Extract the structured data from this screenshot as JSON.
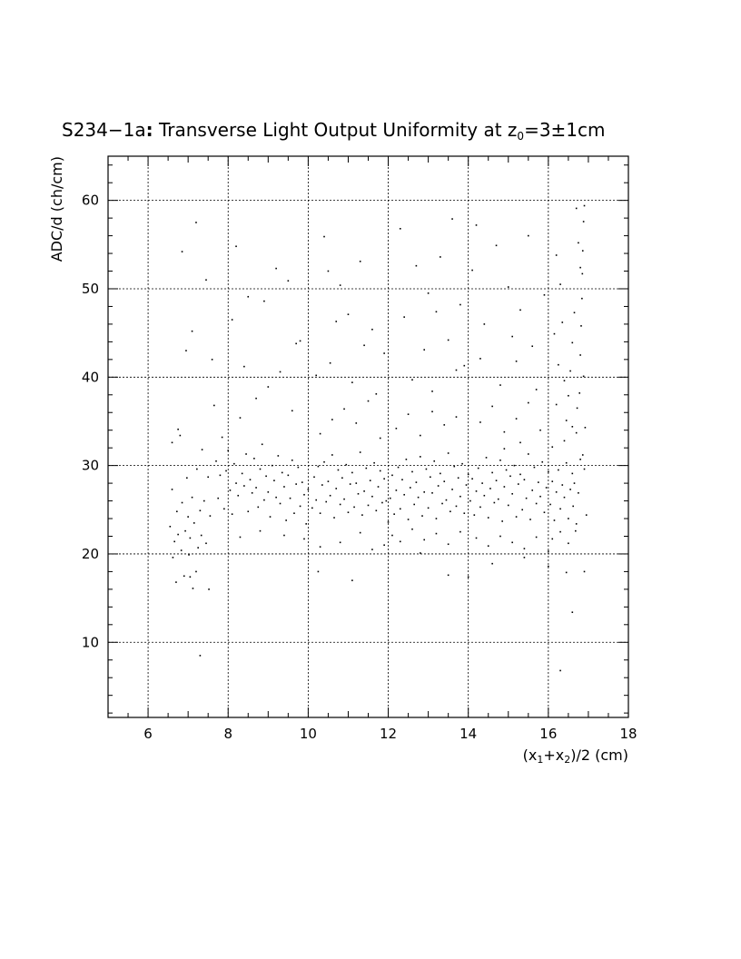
{
  "chart_data": {
    "type": "scatter",
    "title": {
      "prefix": "S234−1a",
      "colon": ":",
      "main": " Transverse Light Output Uniformity at z",
      "sub": "0",
      "suffix": "=3±1cm"
    },
    "xlabel": {
      "p1": "(x",
      "sub1": "1",
      "p2": "+x",
      "sub2": "2",
      "p3": ")/2 (cm)"
    },
    "ylabel": "ADC/d (ch/cm)",
    "xlim": [
      5,
      18
    ],
    "ylim": [
      1.5,
      65
    ],
    "xticks": [
      6,
      8,
      10,
      12,
      14,
      16,
      18
    ],
    "xtick_labels": [
      "6",
      "8",
      "10",
      "12",
      "14",
      "16",
      "18"
    ],
    "yticks": [
      10,
      20,
      30,
      40,
      50,
      60
    ],
    "ytick_labels": [
      "10",
      "20",
      "30",
      "40",
      "50",
      "60"
    ],
    "grid": true,
    "points": [
      [
        6.55,
        23.1
      ],
      [
        6.6,
        27.3
      ],
      [
        6.62,
        19.6
      ],
      [
        6.66,
        21.4
      ],
      [
        6.7,
        16.8
      ],
      [
        6.72,
        24.8
      ],
      [
        6.75,
        22.2
      ],
      [
        6.8,
        33.4
      ],
      [
        6.83,
        20.4
      ],
      [
        6.85,
        25.8
      ],
      [
        6.9,
        17.5
      ],
      [
        6.93,
        22.6
      ],
      [
        6.97,
        28.6
      ],
      [
        7.0,
        24.2
      ],
      [
        7.02,
        19.9
      ],
      [
        7.05,
        21.8
      ],
      [
        7.1,
        26.4
      ],
      [
        7.12,
        16.1
      ],
      [
        7.15,
        23.5
      ],
      [
        7.2,
        18.0
      ],
      [
        7.22,
        29.6
      ],
      [
        7.25,
        20.7
      ],
      [
        7.3,
        24.9
      ],
      [
        7.33,
        22.1
      ],
      [
        7.35,
        31.8
      ],
      [
        7.4,
        26.0
      ],
      [
        7.45,
        21.2
      ],
      [
        7.5,
        28.7
      ],
      [
        7.52,
        16.0
      ],
      [
        7.55,
        24.3
      ],
      [
        6.6,
        32.6
      ],
      [
        6.85,
        54.2
      ],
      [
        6.95,
        43.0
      ],
      [
        7.1,
        45.2
      ],
      [
        7.2,
        57.5
      ],
      [
        7.45,
        51.0
      ],
      [
        7.6,
        42.0
      ],
      [
        7.3,
        8.5
      ],
      [
        7.05,
        17.4
      ],
      [
        6.75,
        34.1
      ],
      [
        7.65,
        36.8
      ],
      [
        7.7,
        30.5
      ],
      [
        7.75,
        26.3
      ],
      [
        7.8,
        28.9
      ],
      [
        7.85,
        33.2
      ],
      [
        7.9,
        25.1
      ],
      [
        7.95,
        29.4
      ],
      [
        8.0,
        31.7
      ],
      [
        8.05,
        27.2
      ],
      [
        8.1,
        24.5
      ],
      [
        8.15,
        30.2
      ],
      [
        8.2,
        28.0
      ],
      [
        8.25,
        26.6
      ],
      [
        8.3,
        35.4
      ],
      [
        8.35,
        29.1
      ],
      [
        8.4,
        27.7
      ],
      [
        8.45,
        31.3
      ],
      [
        8.5,
        24.8
      ],
      [
        8.55,
        28.4
      ],
      [
        8.6,
        26.9
      ],
      [
        8.65,
        30.8
      ],
      [
        8.7,
        27.5
      ],
      [
        8.75,
        25.3
      ],
      [
        8.8,
        29.6
      ],
      [
        8.85,
        32.4
      ],
      [
        8.9,
        26.1
      ],
      [
        8.95,
        28.8
      ],
      [
        9.0,
        27.0
      ],
      [
        9.05,
        24.2
      ],
      [
        9.1,
        30.0
      ],
      [
        9.15,
        28.3
      ],
      [
        9.2,
        26.4
      ],
      [
        9.25,
        31.1
      ],
      [
        9.3,
        25.7
      ],
      [
        9.35,
        29.2
      ],
      [
        9.4,
        27.6
      ],
      [
        9.45,
        23.8
      ],
      [
        9.5,
        28.9
      ],
      [
        9.55,
        26.3
      ],
      [
        9.6,
        30.6
      ],
      [
        9.65,
        24.6
      ],
      [
        9.7,
        27.9
      ],
      [
        9.75,
        29.8
      ],
      [
        9.8,
        25.4
      ],
      [
        9.85,
        28.1
      ],
      [
        9.9,
        26.7
      ],
      [
        9.95,
        23.4
      ],
      [
        10.0,
        27.3
      ],
      [
        8.2,
        54.8
      ],
      [
        8.5,
        49.1
      ],
      [
        8.9,
        48.6
      ],
      [
        9.2,
        52.3
      ],
      [
        9.5,
        50.9
      ],
      [
        9.7,
        43.8
      ],
      [
        8.1,
        46.5
      ],
      [
        8.4,
        41.2
      ],
      [
        8.7,
        37.6
      ],
      [
        9.0,
        38.9
      ],
      [
        9.3,
        40.6
      ],
      [
        9.6,
        36.2
      ],
      [
        9.8,
        44.1
      ],
      [
        8.3,
        21.9
      ],
      [
        8.8,
        22.6
      ],
      [
        9.4,
        22.1
      ],
      [
        9.9,
        21.7
      ],
      [
        10.1,
        25.2
      ],
      [
        10.15,
        28.7
      ],
      [
        10.2,
        26.1
      ],
      [
        10.25,
        29.9
      ],
      [
        10.3,
        24.6
      ],
      [
        10.35,
        27.8
      ],
      [
        10.4,
        30.4
      ],
      [
        10.45,
        25.9
      ],
      [
        10.5,
        28.2
      ],
      [
        10.55,
        26.6
      ],
      [
        10.6,
        31.2
      ],
      [
        10.65,
        24.1
      ],
      [
        10.7,
        27.4
      ],
      [
        10.75,
        29.5
      ],
      [
        10.8,
        25.6
      ],
      [
        10.85,
        28.6
      ],
      [
        10.9,
        26.2
      ],
      [
        10.95,
        30.1
      ],
      [
        11.0,
        24.7
      ],
      [
        11.05,
        27.9
      ],
      [
        11.1,
        29.2
      ],
      [
        11.15,
        25.3
      ],
      [
        11.2,
        28.0
      ],
      [
        11.25,
        26.8
      ],
      [
        11.3,
        31.5
      ],
      [
        11.35,
        24.4
      ],
      [
        11.4,
        27.1
      ],
      [
        11.45,
        29.7
      ],
      [
        11.5,
        25.5
      ],
      [
        11.55,
        28.3
      ],
      [
        11.6,
        26.5
      ],
      [
        11.65,
        30.3
      ],
      [
        11.7,
        24.9
      ],
      [
        11.75,
        27.6
      ],
      [
        11.8,
        29.4
      ],
      [
        11.85,
        25.8
      ],
      [
        11.9,
        28.5
      ],
      [
        11.95,
        26.0
      ],
      [
        12.0,
        23.6
      ],
      [
        10.3,
        33.6
      ],
      [
        10.6,
        35.2
      ],
      [
        10.9,
        36.4
      ],
      [
        11.2,
        34.8
      ],
      [
        11.5,
        37.3
      ],
      [
        11.8,
        33.1
      ],
      [
        10.4,
        55.9
      ],
      [
        10.5,
        52.0
      ],
      [
        10.7,
        46.3
      ],
      [
        10.8,
        50.4
      ],
      [
        11.0,
        47.1
      ],
      [
        11.3,
        53.1
      ],
      [
        11.6,
        45.4
      ],
      [
        11.9,
        42.7
      ],
      [
        10.2,
        40.2
      ],
      [
        10.55,
        41.6
      ],
      [
        11.1,
        39.4
      ],
      [
        11.4,
        43.6
      ],
      [
        11.7,
        38.1
      ],
      [
        10.3,
        20.8
      ],
      [
        10.8,
        21.3
      ],
      [
        11.1,
        17.0
      ],
      [
        11.3,
        22.4
      ],
      [
        11.9,
        21.0
      ],
      [
        10.25,
        18.0
      ],
      [
        11.6,
        20.5
      ],
      [
        12.05,
        26.3
      ],
      [
        12.1,
        28.9
      ],
      [
        12.15,
        24.5
      ],
      [
        12.2,
        27.2
      ],
      [
        12.25,
        29.8
      ],
      [
        12.3,
        25.1
      ],
      [
        12.35,
        28.4
      ],
      [
        12.4,
        26.7
      ],
      [
        12.45,
        30.7
      ],
      [
        12.5,
        23.9
      ],
      [
        12.55,
        27.5
      ],
      [
        12.6,
        29.3
      ],
      [
        12.65,
        25.6
      ],
      [
        12.7,
        28.1
      ],
      [
        12.75,
        26.4
      ],
      [
        12.8,
        31.0
      ],
      [
        12.85,
        24.3
      ],
      [
        12.9,
        27.0
      ],
      [
        12.95,
        29.6
      ],
      [
        13.0,
        25.2
      ],
      [
        13.05,
        28.7
      ],
      [
        13.1,
        26.9
      ],
      [
        13.15,
        30.5
      ],
      [
        13.2,
        24.0
      ],
      [
        13.25,
        27.7
      ],
      [
        13.3,
        29.1
      ],
      [
        13.35,
        25.7
      ],
      [
        13.4,
        28.2
      ],
      [
        13.45,
        26.1
      ],
      [
        13.5,
        31.4
      ],
      [
        13.55,
        24.8
      ],
      [
        13.6,
        27.3
      ],
      [
        13.65,
        29.9
      ],
      [
        13.7,
        25.4
      ],
      [
        13.75,
        28.6
      ],
      [
        13.8,
        26.5
      ],
      [
        13.85,
        30.2
      ],
      [
        13.9,
        24.6
      ],
      [
        13.95,
        27.8
      ],
      [
        14.0,
        29.0
      ],
      [
        12.1,
        22.1
      ],
      [
        12.3,
        21.4
      ],
      [
        12.6,
        22.8
      ],
      [
        12.9,
        21.6
      ],
      [
        13.2,
        22.3
      ],
      [
        13.5,
        21.1
      ],
      [
        13.8,
        22.5
      ],
      [
        12.2,
        34.2
      ],
      [
        12.5,
        35.8
      ],
      [
        12.8,
        33.4
      ],
      [
        13.1,
        36.1
      ],
      [
        13.4,
        34.6
      ],
      [
        13.7,
        35.5
      ],
      [
        12.3,
        56.8
      ],
      [
        12.7,
        52.6
      ],
      [
        13.0,
        49.5
      ],
      [
        13.3,
        53.6
      ],
      [
        13.6,
        57.9
      ],
      [
        13.8,
        48.2
      ],
      [
        12.4,
        46.8
      ],
      [
        12.9,
        43.1
      ],
      [
        13.2,
        47.4
      ],
      [
        13.5,
        44.2
      ],
      [
        13.9,
        41.3
      ],
      [
        12.6,
        39.7
      ],
      [
        13.1,
        38.4
      ],
      [
        13.7,
        40.8
      ],
      [
        13.5,
        17.6
      ],
      [
        12.8,
        20.1
      ],
      [
        14.0,
        17.4
      ],
      [
        14.05,
        26.0
      ],
      [
        14.1,
        28.5
      ],
      [
        14.15,
        24.4
      ],
      [
        14.2,
        27.1
      ],
      [
        14.25,
        29.7
      ],
      [
        14.3,
        25.3
      ],
      [
        14.35,
        28.0
      ],
      [
        14.4,
        26.6
      ],
      [
        14.45,
        30.9
      ],
      [
        14.5,
        24.1
      ],
      [
        14.55,
        27.4
      ],
      [
        14.6,
        29.2
      ],
      [
        14.65,
        25.8
      ],
      [
        14.7,
        28.3
      ],
      [
        14.75,
        26.2
      ],
      [
        14.8,
        30.6
      ],
      [
        14.85,
        23.7
      ],
      [
        14.9,
        27.6
      ],
      [
        14.95,
        29.5
      ],
      [
        15.0,
        25.5
      ],
      [
        15.05,
        28.8
      ],
      [
        15.1,
        26.8
      ],
      [
        15.15,
        30.0
      ],
      [
        15.2,
        24.2
      ],
      [
        15.25,
        27.9
      ],
      [
        15.3,
        29.0
      ],
      [
        15.35,
        25.0
      ],
      [
        15.4,
        28.4
      ],
      [
        15.45,
        26.3
      ],
      [
        15.5,
        31.3
      ],
      [
        15.55,
        23.9
      ],
      [
        15.6,
        27.2
      ],
      [
        15.65,
        29.8
      ],
      [
        15.7,
        25.7
      ],
      [
        15.75,
        28.1
      ],
      [
        15.8,
        26.5
      ],
      [
        15.85,
        30.4
      ],
      [
        15.9,
        24.7
      ],
      [
        15.95,
        27.5
      ],
      [
        16.0,
        29.3
      ],
      [
        14.2,
        21.8
      ],
      [
        14.5,
        20.9
      ],
      [
        14.8,
        22.0
      ],
      [
        15.1,
        21.3
      ],
      [
        15.4,
        20.6
      ],
      [
        15.7,
        21.9
      ],
      [
        14.3,
        34.9
      ],
      [
        14.6,
        36.7
      ],
      [
        14.9,
        33.8
      ],
      [
        15.2,
        35.3
      ],
      [
        15.5,
        37.1
      ],
      [
        15.8,
        34.0
      ],
      [
        14.1,
        52.1
      ],
      [
        14.4,
        46.0
      ],
      [
        14.7,
        54.9
      ],
      [
        15.0,
        50.2
      ],
      [
        15.3,
        47.6
      ],
      [
        15.6,
        43.5
      ],
      [
        15.9,
        49.3
      ],
      [
        14.3,
        42.1
      ],
      [
        14.8,
        39.1
      ],
      [
        15.2,
        41.8
      ],
      [
        15.7,
        38.6
      ],
      [
        14.6,
        18.9
      ],
      [
        15.4,
        19.6
      ],
      [
        14.2,
        57.2
      ],
      [
        15.5,
        56.0
      ],
      [
        15.1,
        44.6
      ],
      [
        14.9,
        31.9
      ],
      [
        15.3,
        32.6
      ],
      [
        16.05,
        25.6
      ],
      [
        16.1,
        28.2
      ],
      [
        16.15,
        23.8
      ],
      [
        16.2,
        27.0
      ],
      [
        16.25,
        29.5
      ],
      [
        16.3,
        25.1
      ],
      [
        16.35,
        27.8
      ],
      [
        16.4,
        26.4
      ],
      [
        16.45,
        30.3
      ],
      [
        16.5,
        24.0
      ],
      [
        16.55,
        27.3
      ],
      [
        16.6,
        29.1
      ],
      [
        16.62,
        25.4
      ],
      [
        16.65,
        28.0
      ],
      [
        16.68,
        22.6
      ],
      [
        16.7,
        33.7
      ],
      [
        16.72,
        36.5
      ],
      [
        16.75,
        26.9
      ],
      [
        16.78,
        38.2
      ],
      [
        16.8,
        42.5
      ],
      [
        16.82,
        45.8
      ],
      [
        16.84,
        48.9
      ],
      [
        16.85,
        51.7
      ],
      [
        16.86,
        54.3
      ],
      [
        16.88,
        57.6
      ],
      [
        16.9,
        59.4
      ],
      [
        16.7,
        59.1
      ],
      [
        16.75,
        55.2
      ],
      [
        16.8,
        52.4
      ],
      [
        16.65,
        47.3
      ],
      [
        16.6,
        43.9
      ],
      [
        16.55,
        40.7
      ],
      [
        16.5,
        37.9
      ],
      [
        16.45,
        35.1
      ],
      [
        16.4,
        32.8
      ],
      [
        16.35,
        46.2
      ],
      [
        16.3,
        50.5
      ],
      [
        16.25,
        41.4
      ],
      [
        16.2,
        53.8
      ],
      [
        16.15,
        44.9
      ],
      [
        16.9,
        29.6
      ],
      [
        16.95,
        24.4
      ],
      [
        16.92,
        34.3
      ],
      [
        16.88,
        40.1
      ],
      [
        16.86,
        31.2
      ],
      [
        16.0,
        20.3
      ],
      [
        16.1,
        21.7
      ],
      [
        16.3,
        22.5
      ],
      [
        16.5,
        21.2
      ],
      [
        16.7,
        23.4
      ],
      [
        16.6,
        13.4
      ],
      [
        16.3,
        6.8
      ],
      [
        16.9,
        18.0
      ],
      [
        16.45,
        17.9
      ],
      [
        16.0,
        18.6
      ],
      [
        16.2,
        36.9
      ],
      [
        16.4,
        39.6
      ],
      [
        16.6,
        34.4
      ],
      [
        16.8,
        30.7
      ],
      [
        16.1,
        32.1
      ]
    ]
  }
}
